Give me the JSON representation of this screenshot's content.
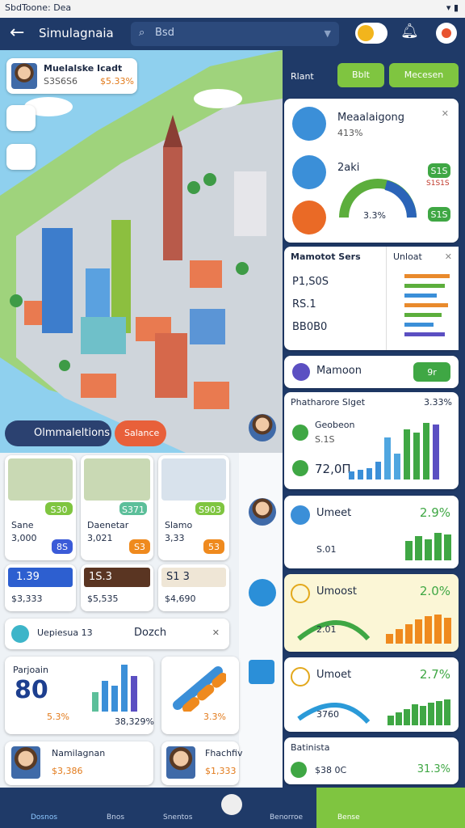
{
  "status": {
    "time": "SbdToone: Dea"
  },
  "header": {
    "title": "Simulagnaia",
    "search": "Bsd"
  },
  "profile": {
    "name": "Muelalske Icadt",
    "id": "S3S6S6",
    "change": "$5.33%"
  },
  "map_buttons": [
    "Olmmaleltions",
    "Salance"
  ],
  "right_header": [
    "Rlant",
    "Bblt",
    "Mecesen"
  ],
  "stat_card": {
    "title": "Meaalaigong",
    "sub": "413%",
    "label": "2aki",
    "gauge": "3.3%",
    "badges": [
      "S1S",
      "S1S1S",
      "S1S"
    ]
  },
  "list_card": {
    "title": "Mamotot Sers",
    "rows": [
      "P1,S0S",
      "RS.1",
      "BB0B0"
    ],
    "popup": "Unloat"
  },
  "row_card": {
    "title": "Mamoon",
    "button": "9r"
  },
  "growth_card": {
    "title": "Phatharore Slget",
    "value": "3.33%",
    "name": "Geobeon",
    "sub": "S.1S",
    "total": "72,0Π"
  },
  "metric_cards": [
    {
      "title": "Umeet",
      "value": "2.9%",
      "sub": "S.01"
    },
    {
      "title": "Umoost",
      "value": "2.0%",
      "sub": "2.01"
    },
    {
      "title": "Umoet",
      "value": "2.7%",
      "sub": "3760"
    }
  ],
  "footer_card": {
    "title": "Batinista",
    "amount": "$38 0C",
    "value": "31.3%"
  },
  "tiles": [
    {
      "badge": "S30",
      "name": "Sane",
      "value": "3,000",
      "tag": "8S"
    },
    {
      "badge": "S371",
      "name": "Daenetar",
      "value": "3,021",
      "tag": "S3"
    },
    {
      "badge": "S903",
      "name": "Slamo",
      "value": "3,33",
      "tag": "53"
    }
  ],
  "price_tiles": [
    {
      "label": "1.39",
      "value": "$3,333"
    },
    {
      "label": "1S.3",
      "value": "$5,535"
    },
    {
      "label": "S1 3",
      "value": "$4,690"
    }
  ],
  "search_bar": {
    "label": "Uepiesua 13",
    "action": "Dozch"
  },
  "stats": [
    {
      "title": "Parjoain",
      "value": "80",
      "change": "5.3%",
      "extra": "38,329%"
    },
    {
      "change": "3.3%"
    }
  ],
  "people": [
    {
      "name": "Namilagnan",
      "value": "$3,386"
    },
    {
      "name": "Fhachfiv",
      "value": "$1,333"
    }
  ],
  "nav": [
    "Dosnos",
    "Bnos",
    "Snentos",
    "Benorroe",
    "Bense"
  ]
}
